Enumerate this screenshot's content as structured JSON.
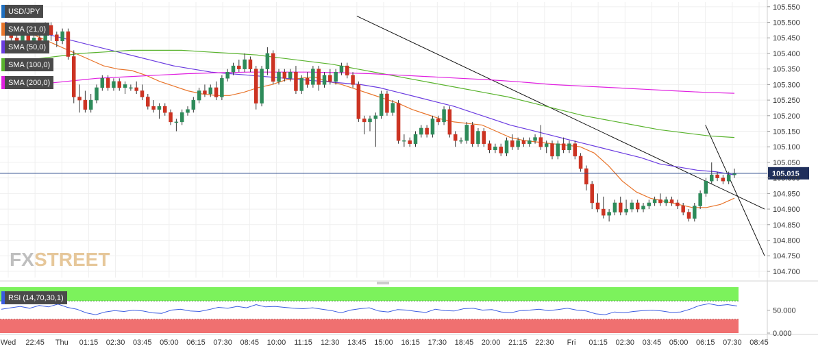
{
  "chart_data": {
    "type": "candlestick",
    "symbol": "USD/JPY",
    "price_axis": {
      "ticks": [
        "105.550",
        "105.500",
        "105.450",
        "105.400",
        "105.350",
        "105.300",
        "105.250",
        "105.200",
        "105.150",
        "105.100",
        "105.050",
        "105.000",
        "104.950",
        "104.900",
        "104.850",
        "104.800",
        "104.750",
        "104.700"
      ],
      "range": [
        104.68,
        105.565
      ],
      "current_price": "105.015"
    },
    "time_axis": {
      "labels": [
        "Wed",
        "22:45",
        "Thu",
        "01:15",
        "02:30",
        "03:45",
        "05:00",
        "06:15",
        "07:30",
        "08:45",
        "10:00",
        "11:15",
        "12:30",
        "13:45",
        "15:00",
        "16:15",
        "17:30",
        "18:45",
        "20:00",
        "21:15",
        "22:30",
        "Fri",
        "01:15",
        "02:30",
        "03:45",
        "05:00",
        "06:15",
        "07:30",
        "08:45"
      ]
    },
    "legend": [
      "SMA (21,0)",
      "SMA (50,0)",
      "SMA (100,0)",
      "SMA (200,0)"
    ],
    "indicators": [
      {
        "name": "SMA (21,0)",
        "color": "#e8742a",
        "values": [
          105.5,
          105.48,
          105.46,
          105.44,
          105.42,
          105.4,
          105.38,
          105.36,
          105.35,
          105.345,
          105.33,
          105.31,
          105.295,
          105.28,
          105.27,
          105.265,
          105.265,
          105.275,
          105.29,
          105.3,
          105.315,
          105.32,
          105.325,
          105.31,
          105.3,
          105.285,
          105.27,
          105.255,
          105.24,
          105.22,
          105.205,
          105.19,
          105.18,
          105.175,
          105.17,
          105.15,
          105.13,
          105.12,
          105.115,
          105.11,
          105.105,
          105.1,
          105.08,
          105.04,
          104.99,
          104.955,
          104.935,
          104.925,
          104.915,
          104.905,
          104.905,
          104.915,
          104.935
        ]
      },
      {
        "name": "SMA (50,0)",
        "color": "#6a3be0",
        "values": [
          105.5,
          105.48,
          105.465,
          105.45,
          105.435,
          105.42,
          105.405,
          105.39,
          105.375,
          105.36,
          105.35,
          105.34,
          105.335,
          105.33,
          105.325,
          105.32,
          105.315,
          105.31,
          105.305,
          105.3,
          105.29,
          105.275,
          105.26,
          105.245,
          105.23,
          105.21,
          105.19,
          105.17,
          105.155,
          105.14,
          105.125,
          105.11,
          105.095,
          105.08,
          105.065,
          105.045,
          105.035,
          105.025,
          105.02,
          105.01
        ]
      },
      {
        "name": "SMA (100,0)",
        "color": "#59b32d",
        "values": [
          105.37,
          105.38,
          105.39,
          105.4,
          105.405,
          105.41,
          105.41,
          105.41,
          105.405,
          105.4,
          105.395,
          105.385,
          105.375,
          105.365,
          105.35,
          105.335,
          105.32,
          105.305,
          105.29,
          105.275,
          105.26,
          105.24,
          105.22,
          105.2,
          105.185,
          105.17,
          105.155,
          105.145,
          105.135,
          105.13
        ]
      },
      {
        "name": "SMA (200,0)",
        "color": "#e020e0",
        "values": [
          105.29,
          105.3,
          105.31,
          105.32,
          105.325,
          105.33,
          105.335,
          105.338,
          105.34,
          105.34,
          105.34,
          105.338,
          105.335,
          105.33,
          105.325,
          105.32,
          105.315,
          105.308,
          105.3,
          105.295,
          105.29,
          105.285,
          105.28,
          105.275,
          105.272
        ]
      }
    ],
    "rsi": {
      "label": "RSI (14,70,30,1)",
      "axis_labels": [
        "50.000",
        "0.000"
      ],
      "color": "#3a5be0",
      "overbought_color": "#7cf25c",
      "oversold_color": "#f07070",
      "values": [
        52,
        55,
        58,
        54,
        60,
        57,
        63,
        56,
        52,
        44,
        40,
        46,
        49,
        47,
        50,
        48,
        44,
        43,
        50,
        52,
        48,
        47,
        51,
        56,
        54,
        58,
        55,
        62,
        57,
        58,
        56,
        54,
        53,
        55,
        52,
        49,
        44,
        50,
        53,
        55,
        48,
        46,
        51,
        50,
        47,
        45,
        52,
        49,
        48,
        53,
        54,
        50,
        51,
        46,
        44,
        49,
        50,
        52,
        49,
        51,
        54,
        50,
        48,
        42,
        40,
        46,
        44,
        47,
        49,
        50,
        48,
        45,
        46,
        52,
        60,
        64,
        60,
        62,
        59
      ]
    },
    "candles": [
      {
        "o": 105.48,
        "h": 105.5,
        "l": 105.44,
        "c": 105.46
      },
      {
        "o": 105.46,
        "h": 105.48,
        "l": 105.42,
        "c": 105.45
      },
      {
        "o": 105.45,
        "h": 105.47,
        "l": 105.43,
        "c": 105.44
      },
      {
        "o": 105.44,
        "h": 105.47,
        "l": 105.42,
        "c": 105.46
      },
      {
        "o": 105.46,
        "h": 105.47,
        "l": 105.41,
        "c": 105.43
      },
      {
        "o": 105.43,
        "h": 105.46,
        "l": 105.41,
        "c": 105.45
      },
      {
        "o": 105.45,
        "h": 105.46,
        "l": 105.4,
        "c": 105.41
      },
      {
        "o": 105.41,
        "h": 105.5,
        "l": 105.4,
        "c": 105.49
      },
      {
        "o": 105.49,
        "h": 105.5,
        "l": 105.44,
        "c": 105.46
      },
      {
        "o": 105.46,
        "h": 105.47,
        "l": 105.42,
        "c": 105.44
      },
      {
        "o": 105.44,
        "h": 105.48,
        "l": 105.43,
        "c": 105.47
      },
      {
        "o": 105.47,
        "h": 105.48,
        "l": 105.38,
        "c": 105.39
      },
      {
        "o": 105.39,
        "h": 105.41,
        "l": 105.24,
        "c": 105.26
      },
      {
        "o": 105.26,
        "h": 105.3,
        "l": 105.21,
        "c": 105.25
      },
      {
        "o": 105.25,
        "h": 105.28,
        "l": 105.21,
        "c": 105.22
      },
      {
        "o": 105.22,
        "h": 105.27,
        "l": 105.21,
        "c": 105.25
      },
      {
        "o": 105.25,
        "h": 105.3,
        "l": 105.24,
        "c": 105.29
      },
      {
        "o": 105.29,
        "h": 105.33,
        "l": 105.28,
        "c": 105.32
      },
      {
        "o": 105.32,
        "h": 105.33,
        "l": 105.28,
        "c": 105.29
      },
      {
        "o": 105.29,
        "h": 105.32,
        "l": 105.28,
        "c": 105.31
      },
      {
        "o": 105.31,
        "h": 105.32,
        "l": 105.28,
        "c": 105.29
      },
      {
        "o": 105.29,
        "h": 105.31,
        "l": 105.27,
        "c": 105.3
      },
      {
        "o": 105.29,
        "h": 105.3,
        "l": 105.28,
        "c": 105.29
      },
      {
        "o": 105.29,
        "h": 105.31,
        "l": 105.27,
        "c": 105.28
      },
      {
        "o": 105.28,
        "h": 105.3,
        "l": 105.25,
        "c": 105.26
      },
      {
        "o": 105.26,
        "h": 105.27,
        "l": 105.22,
        "c": 105.23
      },
      {
        "o": 105.23,
        "h": 105.25,
        "l": 105.21,
        "c": 105.22
      },
      {
        "o": 105.22,
        "h": 105.24,
        "l": 105.19,
        "c": 105.23
      },
      {
        "o": 105.23,
        "h": 105.24,
        "l": 105.2,
        "c": 105.21
      },
      {
        "o": 105.21,
        "h": 105.22,
        "l": 105.17,
        "c": 105.18
      },
      {
        "o": 105.18,
        "h": 105.19,
        "l": 105.15,
        "c": 105.18
      },
      {
        "o": 105.18,
        "h": 105.22,
        "l": 105.17,
        "c": 105.21
      },
      {
        "o": 105.21,
        "h": 105.23,
        "l": 105.2,
        "c": 105.22
      },
      {
        "o": 105.22,
        "h": 105.26,
        "l": 105.21,
        "c": 105.25
      },
      {
        "o": 105.25,
        "h": 105.29,
        "l": 105.24,
        "c": 105.28
      },
      {
        "o": 105.28,
        "h": 105.3,
        "l": 105.26,
        "c": 105.27
      },
      {
        "o": 105.27,
        "h": 105.3,
        "l": 105.26,
        "c": 105.29
      },
      {
        "o": 105.29,
        "h": 105.31,
        "l": 105.25,
        "c": 105.26
      },
      {
        "o": 105.26,
        "h": 105.33,
        "l": 105.25,
        "c": 105.32
      },
      {
        "o": 105.32,
        "h": 105.35,
        "l": 105.31,
        "c": 105.34
      },
      {
        "o": 105.34,
        "h": 105.37,
        "l": 105.33,
        "c": 105.36
      },
      {
        "o": 105.36,
        "h": 105.38,
        "l": 105.34,
        "c": 105.35
      },
      {
        "o": 105.35,
        "h": 105.4,
        "l": 105.34,
        "c": 105.38
      },
      {
        "o": 105.38,
        "h": 105.39,
        "l": 105.34,
        "c": 105.35
      },
      {
        "o": 105.35,
        "h": 105.36,
        "l": 105.22,
        "c": 105.24
      },
      {
        "o": 105.24,
        "h": 105.36,
        "l": 105.23,
        "c": 105.35
      },
      {
        "o": 105.35,
        "h": 105.42,
        "l": 105.33,
        "c": 105.4
      },
      {
        "o": 105.4,
        "h": 105.41,
        "l": 105.3,
        "c": 105.31
      },
      {
        "o": 105.31,
        "h": 105.35,
        "l": 105.3,
        "c": 105.34
      },
      {
        "o": 105.34,
        "h": 105.35,
        "l": 105.31,
        "c": 105.32
      },
      {
        "o": 105.32,
        "h": 105.35,
        "l": 105.31,
        "c": 105.34
      },
      {
        "o": 105.34,
        "h": 105.36,
        "l": 105.27,
        "c": 105.28
      },
      {
        "o": 105.28,
        "h": 105.33,
        "l": 105.27,
        "c": 105.32
      },
      {
        "o": 105.32,
        "h": 105.34,
        "l": 105.29,
        "c": 105.3
      },
      {
        "o": 105.3,
        "h": 105.36,
        "l": 105.29,
        "c": 105.35
      },
      {
        "o": 105.35,
        "h": 105.36,
        "l": 105.28,
        "c": 105.3
      },
      {
        "o": 105.3,
        "h": 105.34,
        "l": 105.29,
        "c": 105.33
      },
      {
        "o": 105.33,
        "h": 105.35,
        "l": 105.3,
        "c": 105.31
      },
      {
        "o": 105.31,
        "h": 105.35,
        "l": 105.3,
        "c": 105.34
      },
      {
        "o": 105.34,
        "h": 105.37,
        "l": 105.33,
        "c": 105.36
      },
      {
        "o": 105.36,
        "h": 105.37,
        "l": 105.32,
        "c": 105.33
      },
      {
        "o": 105.33,
        "h": 105.34,
        "l": 105.29,
        "c": 105.3
      },
      {
        "o": 105.3,
        "h": 105.31,
        "l": 105.18,
        "c": 105.19
      },
      {
        "o": 105.19,
        "h": 105.2,
        "l": 105.14,
        "c": 105.18
      },
      {
        "o": 105.18,
        "h": 105.2,
        "l": 105.15,
        "c": 105.19
      },
      {
        "o": 105.19,
        "h": 105.21,
        "l": 105.1,
        "c": 105.2
      },
      {
        "o": 105.2,
        "h": 105.28,
        "l": 105.19,
        "c": 105.27
      },
      {
        "o": 105.27,
        "h": 105.28,
        "l": 105.2,
        "c": 105.21
      },
      {
        "o": 105.21,
        "h": 105.25,
        "l": 105.2,
        "c": 105.24
      },
      {
        "o": 105.24,
        "h": 105.25,
        "l": 105.11,
        "c": 105.12
      },
      {
        "o": 105.12,
        "h": 105.14,
        "l": 105.1,
        "c": 105.12
      },
      {
        "o": 105.12,
        "h": 105.13,
        "l": 105.1,
        "c": 105.11
      },
      {
        "o": 105.11,
        "h": 105.15,
        "l": 105.1,
        "c": 105.14
      },
      {
        "o": 105.14,
        "h": 105.17,
        "l": 105.13,
        "c": 105.16
      },
      {
        "o": 105.16,
        "h": 105.17,
        "l": 105.13,
        "c": 105.14
      },
      {
        "o": 105.14,
        "h": 105.2,
        "l": 105.13,
        "c": 105.19
      },
      {
        "o": 105.19,
        "h": 105.2,
        "l": 105.17,
        "c": 105.18
      },
      {
        "o": 105.18,
        "h": 105.23,
        "l": 105.17,
        "c": 105.22
      },
      {
        "o": 105.22,
        "h": 105.23,
        "l": 105.13,
        "c": 105.14
      },
      {
        "o": 105.14,
        "h": 105.15,
        "l": 105.1,
        "c": 105.12
      },
      {
        "o": 105.12,
        "h": 105.13,
        "l": 105.11,
        "c": 105.12
      },
      {
        "o": 105.12,
        "h": 105.18,
        "l": 105.11,
        "c": 105.17
      },
      {
        "o": 105.17,
        "h": 105.18,
        "l": 105.1,
        "c": 105.11
      },
      {
        "o": 105.11,
        "h": 105.16,
        "l": 105.1,
        "c": 105.15
      },
      {
        "o": 105.15,
        "h": 105.16,
        "l": 105.1,
        "c": 105.11
      },
      {
        "o": 105.11,
        "h": 105.12,
        "l": 105.08,
        "c": 105.09
      },
      {
        "o": 105.09,
        "h": 105.11,
        "l": 105.08,
        "c": 105.1
      },
      {
        "o": 105.1,
        "h": 105.11,
        "l": 105.07,
        "c": 105.08
      },
      {
        "o": 105.08,
        "h": 105.13,
        "l": 105.07,
        "c": 105.12
      },
      {
        "o": 105.12,
        "h": 105.14,
        "l": 105.09,
        "c": 105.1
      },
      {
        "o": 105.1,
        "h": 105.13,
        "l": 105.09,
        "c": 105.12
      },
      {
        "o": 105.12,
        "h": 105.13,
        "l": 105.1,
        "c": 105.11
      },
      {
        "o": 105.11,
        "h": 105.13,
        "l": 105.1,
        "c": 105.12
      },
      {
        "o": 105.12,
        "h": 105.14,
        "l": 105.11,
        "c": 105.13
      },
      {
        "o": 105.13,
        "h": 105.17,
        "l": 105.09,
        "c": 105.1
      },
      {
        "o": 105.1,
        "h": 105.12,
        "l": 105.08,
        "c": 105.11
      },
      {
        "o": 105.11,
        "h": 105.12,
        "l": 105.06,
        "c": 105.07
      },
      {
        "o": 105.07,
        "h": 105.12,
        "l": 105.06,
        "c": 105.11
      },
      {
        "o": 105.11,
        "h": 105.13,
        "l": 105.08,
        "c": 105.09
      },
      {
        "o": 105.09,
        "h": 105.12,
        "l": 105.08,
        "c": 105.11
      },
      {
        "o": 105.11,
        "h": 105.12,
        "l": 105.06,
        "c": 105.07
      },
      {
        "o": 105.07,
        "h": 105.08,
        "l": 105.02,
        "c": 105.03
      },
      {
        "o": 105.03,
        "h": 105.04,
        "l": 104.96,
        "c": 104.98
      },
      {
        "o": 104.98,
        "h": 104.99,
        "l": 104.9,
        "c": 104.92
      },
      {
        "o": 104.92,
        "h": 104.95,
        "l": 104.89,
        "c": 104.9
      },
      {
        "o": 104.9,
        "h": 104.94,
        "l": 104.87,
        "c": 104.88
      },
      {
        "o": 104.88,
        "h": 104.9,
        "l": 104.86,
        "c": 104.89
      },
      {
        "o": 104.89,
        "h": 104.93,
        "l": 104.88,
        "c": 104.92
      },
      {
        "o": 104.92,
        "h": 104.94,
        "l": 104.88,
        "c": 104.89
      },
      {
        "o": 104.89,
        "h": 104.93,
        "l": 104.88,
        "c": 104.9
      },
      {
        "o": 104.9,
        "h": 104.93,
        "l": 104.89,
        "c": 104.92
      },
      {
        "o": 104.92,
        "h": 104.93,
        "l": 104.89,
        "c": 104.9
      },
      {
        "o": 104.9,
        "h": 104.92,
        "l": 104.89,
        "c": 104.91
      },
      {
        "o": 104.91,
        "h": 104.93,
        "l": 104.9,
        "c": 104.92
      },
      {
        "o": 104.92,
        "h": 104.94,
        "l": 104.91,
        "c": 104.93
      },
      {
        "o": 104.93,
        "h": 104.95,
        "l": 104.91,
        "c": 104.92
      },
      {
        "o": 104.92,
        "h": 104.94,
        "l": 104.91,
        "c": 104.93
      },
      {
        "o": 104.93,
        "h": 104.94,
        "l": 104.91,
        "c": 104.92
      },
      {
        "o": 104.92,
        "h": 104.93,
        "l": 104.9,
        "c": 104.91
      },
      {
        "o": 104.91,
        "h": 104.92,
        "l": 104.88,
        "c": 104.89
      },
      {
        "o": 104.89,
        "h": 104.9,
        "l": 104.86,
        "c": 104.87
      },
      {
        "o": 104.87,
        "h": 104.92,
        "l": 104.86,
        "c": 104.91
      },
      {
        "o": 104.91,
        "h": 104.96,
        "l": 104.9,
        "c": 104.95
      },
      {
        "o": 104.95,
        "h": 105.0,
        "l": 104.94,
        "c": 104.99
      },
      {
        "o": 104.99,
        "h": 105.05,
        "l": 104.98,
        "c": 105.01
      },
      {
        "o": 105.01,
        "h": 105.02,
        "l": 104.99,
        "c": 105.0
      },
      {
        "o": 105.0,
        "h": 105.01,
        "l": 104.98,
        "c": 104.99
      },
      {
        "o": 104.99,
        "h": 105.02,
        "l": 104.98,
        "c": 105.01
      },
      {
        "o": 105.01,
        "h": 105.03,
        "l": 105.0,
        "c": 105.015
      }
    ],
    "trendlines": [
      {
        "from": {
          "x": "13:45",
          "y": 105.52
        },
        "to": {
          "x": "08:45",
          "y": 104.9
        }
      },
      {
        "from": {
          "x": "06:15",
          "y": 105.17
        },
        "to": {
          "x": "08:45",
          "y": 104.75
        }
      }
    ],
    "colors": {
      "up": "#2e8b5a",
      "down": "#cc3322",
      "grid": "#ececec",
      "axis": "#888888"
    }
  },
  "ui": {
    "symbol_label": "USD/JPY",
    "rsi_label": "RSI (14,70,30,1)",
    "watermark_fx": "FX",
    "watermark_street": "STREET"
  }
}
